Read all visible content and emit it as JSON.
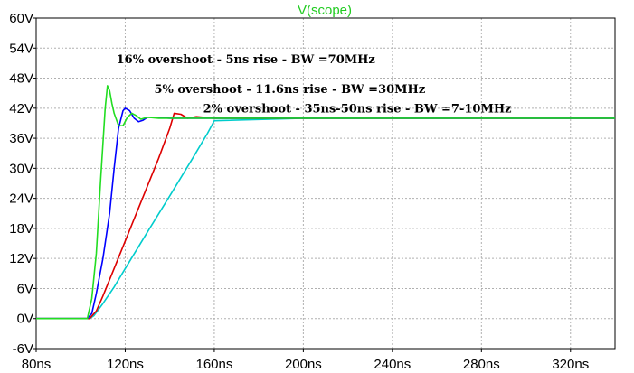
{
  "chart_data": {
    "type": "line",
    "title": "V(scope)",
    "title_color": "#22cc22",
    "xlabel": "",
    "ylabel": "",
    "xlim": [
      80,
      340
    ],
    "ylim": [
      -6,
      60
    ],
    "grid": true,
    "x_ticks": [
      80,
      120,
      160,
      200,
      240,
      280,
      320
    ],
    "x_tick_labels": [
      "80ns",
      "120ns",
      "160ns",
      "200ns",
      "240ns",
      "280ns",
      "320ns"
    ],
    "y_ticks": [
      -6,
      0,
      6,
      12,
      18,
      24,
      30,
      36,
      42,
      48,
      54,
      60
    ],
    "y_tick_labels": [
      "-6V",
      "0V",
      "6V",
      "12V",
      "18V",
      "24V",
      "30V",
      "36V",
      "42V",
      "48V",
      "54V",
      "60V"
    ],
    "annotations": [
      {
        "text": "16% overshoot - 5ns rise - BW =70MHz",
        "x": 116,
        "y": 51
      },
      {
        "text": "5% overshoot - 11.6ns rise - BW =30MHz",
        "x": 133,
        "y": 45
      },
      {
        "text": "2% overshoot - 35ns-50ns rise - BW =7-10MHz",
        "x": 155,
        "y": 41.2
      }
    ],
    "series": [
      {
        "color": "#00cccc",
        "x": [
          80,
          104,
          106,
          110,
          115,
          120,
          130,
          140,
          150,
          157,
          160,
          200,
          340
        ],
        "y": [
          0,
          0,
          0.6,
          3,
          6.3,
          10,
          17.3,
          24.5,
          31.8,
          37,
          39.5,
          40,
          40
        ]
      },
      {
        "color": "#dd0000",
        "x": [
          80,
          104,
          107,
          110,
          115,
          120,
          125,
          130,
          135,
          140,
          142,
          145,
          148,
          152,
          160,
          340
        ],
        "y": [
          0,
          0,
          1.5,
          4.5,
          10,
          15.5,
          21,
          26.5,
          32,
          38,
          41,
          40.8,
          40,
          40.3,
          40,
          40
        ]
      },
      {
        "color": "#0000ff",
        "x": [
          80,
          103,
          105,
          107,
          110,
          113,
          115,
          117,
          119,
          120,
          122,
          124,
          126,
          128,
          130,
          134,
          140,
          160,
          340
        ],
        "y": [
          0,
          0,
          1,
          5,
          12,
          21,
          30,
          38,
          41.5,
          42,
          41.5,
          40,
          39.3,
          39.6,
          40.2,
          40.2,
          40,
          40,
          40
        ]
      },
      {
        "color": "#22dd22",
        "x": [
          80,
          103,
          105,
          107,
          109,
          111,
          112,
          113,
          114,
          115,
          117,
          119,
          121,
          123,
          125,
          127,
          130,
          135,
          140,
          160,
          340
        ],
        "y": [
          0,
          0,
          4,
          13,
          28,
          42,
          46.5,
          45.5,
          43,
          41,
          38.5,
          38.5,
          40.2,
          41,
          40.5,
          39.8,
          40.2,
          40,
          40,
          40,
          40
        ]
      }
    ]
  }
}
